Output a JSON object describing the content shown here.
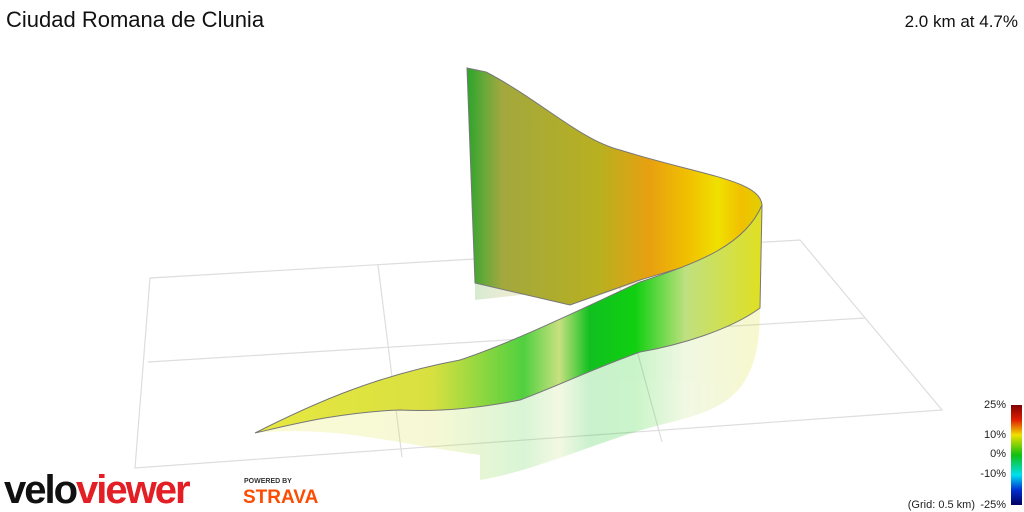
{
  "header": {
    "title": "Ciudad Romana de Clunia",
    "summary": "2.0 km at 4.7%"
  },
  "legend": {
    "labels": [
      "25%",
      "10%",
      "0%",
      "-10%",
      "-25%"
    ],
    "grid_note": "(Grid: 0.5 km)"
  },
  "branding": {
    "logo_velo": "velo",
    "logo_viewer": "viewer",
    "powered_by": "POWERED BY",
    "strava": "STRAVA"
  }
}
